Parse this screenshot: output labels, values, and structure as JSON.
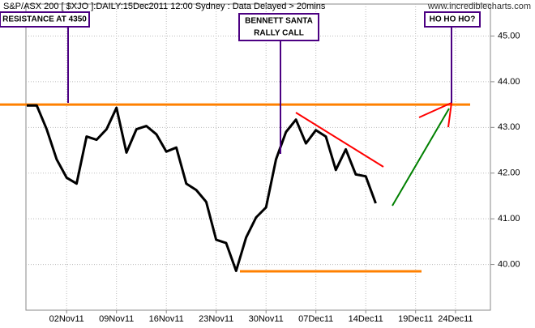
{
  "chart_data": {
    "type": "line",
    "title": "S&P/ASX 200 [ $XJO ]:DAILY:15Dec2011 12:00 Sydney : Data Delayed > 20mins",
    "source": "www.incrediblecharts.com",
    "categories": [
      null,
      null,
      null,
      null,
      "02Nov11",
      null,
      null,
      null,
      null,
      "09Nov11",
      null,
      null,
      null,
      null,
      "16Nov11",
      null,
      null,
      null,
      null,
      "23Nov11",
      null,
      null,
      null,
      null,
      "30Nov11",
      null,
      null,
      null,
      null,
      "07Dec11",
      null,
      null,
      null,
      null,
      "14Dec11",
      null,
      null,
      null,
      null,
      "19Dec11",
      null,
      null,
      null,
      "24Dec11",
      null
    ],
    "series": [
      {
        "name": "XJO",
        "color": "#000000",
        "values": [
          43.48,
          43.48,
          42.96,
          42.3,
          41.9,
          41.77,
          42.8,
          42.73,
          42.96,
          43.43,
          42.45,
          42.96,
          43.03,
          42.85,
          42.47,
          42.56,
          41.77,
          41.63,
          41.37,
          40.54,
          40.47,
          39.86,
          40.59,
          41.03,
          41.25,
          42.3,
          42.9,
          43.17,
          42.65,
          42.94,
          42.8,
          42.07,
          42.52,
          41.97,
          41.93,
          41.34,
          null,
          null,
          null,
          null,
          null,
          null,
          null,
          null,
          null
        ]
      }
    ],
    "ylim": [
      39.0,
      45.7
    ],
    "yticks": [
      {
        "value": 40,
        "label": "40.00"
      },
      {
        "value": 41,
        "label": "41.00"
      },
      {
        "value": 42,
        "label": "42.00"
      },
      {
        "value": 43,
        "label": "43.00"
      },
      {
        "value": 44,
        "label": "44.00"
      },
      {
        "value": 45,
        "label": "45.00"
      }
    ],
    "grid": true,
    "hlines": [
      {
        "value": 43.5,
        "color": "#ff8000"
      },
      {
        "value": 39.85,
        "color": "#ff8000"
      }
    ],
    "annotations": [
      {
        "lines": [
          "RESISTANCE AT 4350"
        ]
      },
      {
        "lines": [
          "BENNETT SANTA",
          "RALLY CALL"
        ]
      },
      {
        "lines": [
          "HO HO HO?"
        ]
      }
    ]
  }
}
